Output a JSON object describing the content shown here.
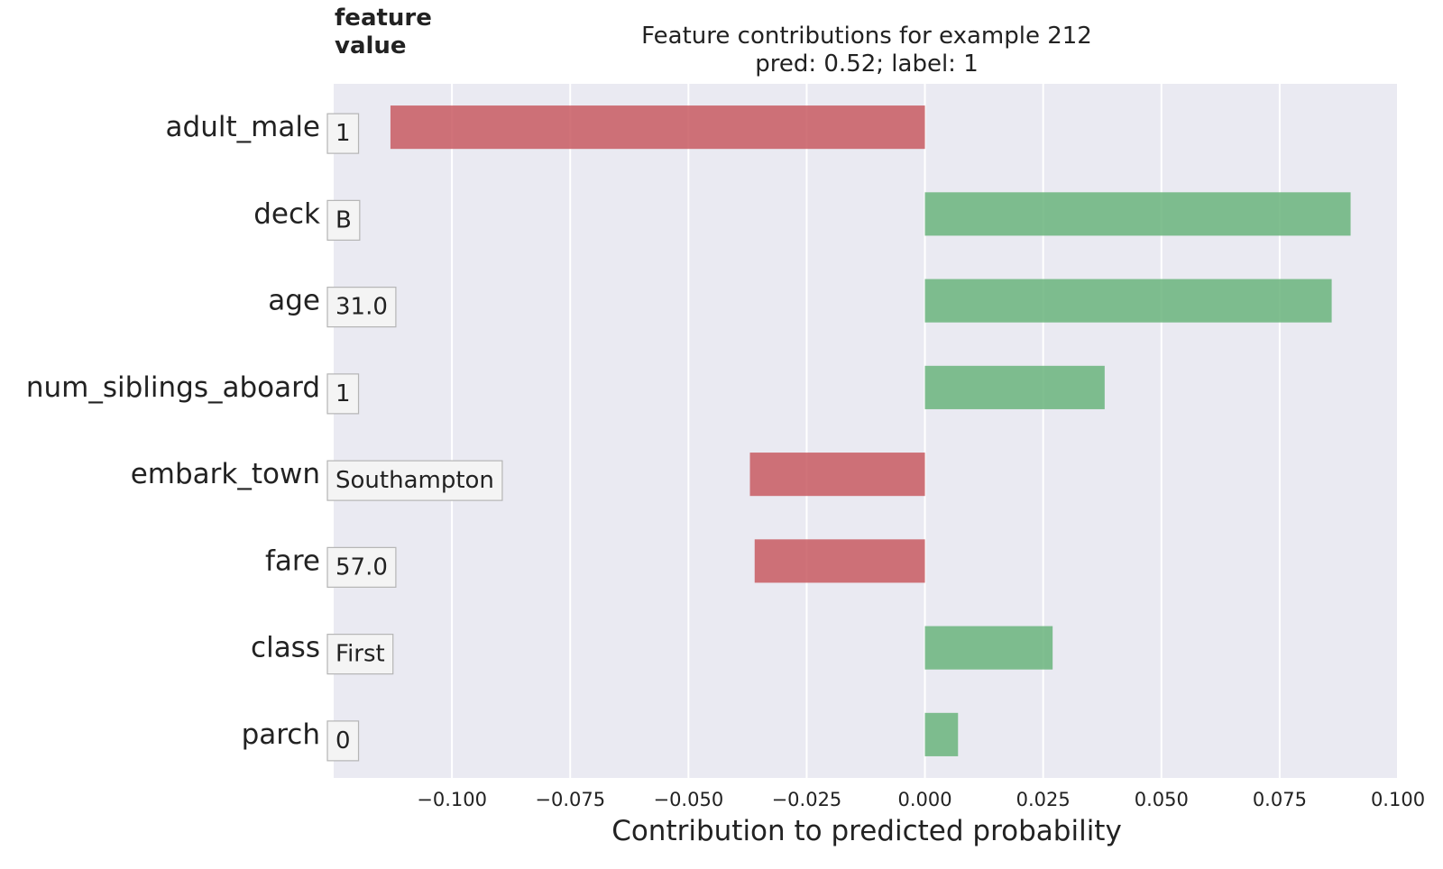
{
  "chart_data": {
    "type": "bar",
    "orientation": "horizontal",
    "title": "Feature contributions for example 212",
    "subtitle": "pred: 0.52; label: 1",
    "value_header": "feature\nvalue",
    "xlabel": "Contribution to predicted probability",
    "xlim": [
      -0.125,
      0.1
    ],
    "xticks": [
      -0.1,
      -0.075,
      -0.05,
      -0.025,
      0.0,
      0.025,
      0.05,
      0.075,
      0.1
    ],
    "xtick_labels": [
      "−0.100",
      "−0.075",
      "−0.050",
      "−0.025",
      "0.000",
      "0.025",
      "0.050",
      "0.075",
      "0.100"
    ],
    "grid": true,
    "categories": [
      "adult_male",
      "deck",
      "age",
      "num_siblings_aboard",
      "embark_town",
      "fare",
      "class",
      "parch"
    ],
    "feature_values": [
      "1",
      "B",
      "31.0",
      "1",
      "Southampton",
      "57.0",
      "First",
      "0"
    ],
    "values": [
      -0.113,
      0.09,
      0.086,
      0.038,
      -0.037,
      -0.036,
      0.027,
      0.007
    ],
    "colors": {
      "positive": "#6ab47c",
      "negative": "#c85a62",
      "plot_background": "#eaeaf2",
      "grid": "#ffffff",
      "text": "#222222"
    }
  }
}
